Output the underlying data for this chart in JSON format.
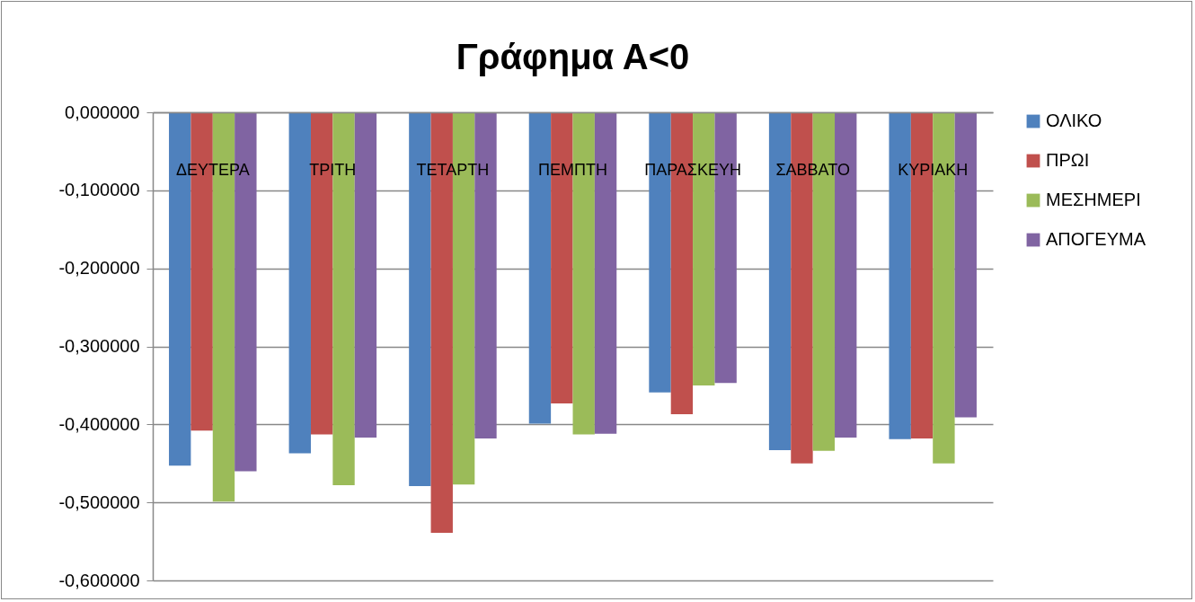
{
  "chart_data": {
    "type": "bar",
    "title": "Γράφημα Α<0",
    "categories": [
      "ΔΕΥΤΕΡΑ",
      "ΤΡΙΤΗ",
      "ΤΕΤΑΡΤΗ",
      "ΠΕΜΠΤΗ",
      "ΠΑΡΑΣΚΕΥΗ",
      "ΣΑΒΒΑΤΟ",
      "ΚΥΡΙΑΚΗ"
    ],
    "series": [
      {
        "name": "ΟΛΙΚΟ",
        "color": "#4f81bd",
        "values": [
          -0.453,
          -0.437,
          -0.479,
          -0.399,
          -0.359,
          -0.433,
          -0.419
        ]
      },
      {
        "name": "ΠΡΩΙ",
        "color": "#c0504d",
        "values": [
          -0.408,
          -0.413,
          -0.539,
          -0.373,
          -0.387,
          -0.45,
          -0.418
        ]
      },
      {
        "name": "ΜΕΣΗΜΕΡΙ",
        "color": "#9bbb59",
        "values": [
          -0.499,
          -0.478,
          -0.477,
          -0.413,
          -0.35,
          -0.434,
          -0.45
        ]
      },
      {
        "name": "ΑΠΟΓΕΥΜΑ",
        "color": "#8064a2",
        "values": [
          -0.46,
          -0.417,
          -0.418,
          -0.412,
          -0.347,
          -0.417,
          -0.391
        ]
      }
    ],
    "ylim": [
      -0.6,
      0
    ],
    "yticks": [
      {
        "value": 0,
        "label": "0,000000"
      },
      {
        "value": -0.1,
        "label": "-0,100000"
      },
      {
        "value": -0.2,
        "label": "-0,200000"
      },
      {
        "value": -0.3,
        "label": "-0,300000"
      },
      {
        "value": -0.4,
        "label": "-0,400000"
      },
      {
        "value": -0.5,
        "label": "-0,500000"
      },
      {
        "value": -0.6,
        "label": "-0,600000"
      }
    ],
    "grid": "y",
    "legend": "right"
  }
}
